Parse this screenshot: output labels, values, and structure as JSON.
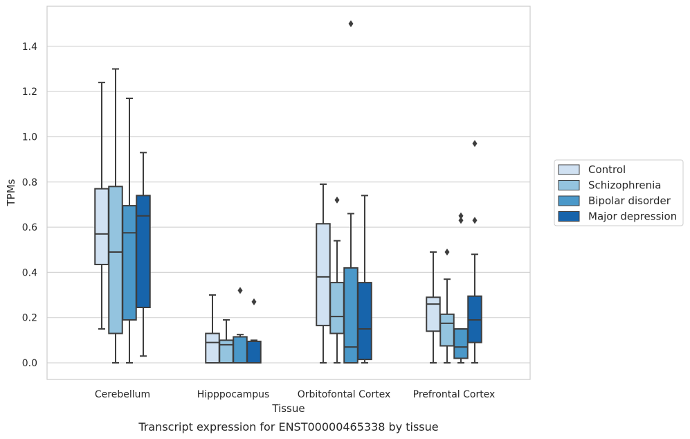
{
  "chart_data": {
    "type": "boxplot",
    "xlabel": "Tissue",
    "ylabel": "TPMs",
    "caption": "Transcript expression for ENST00000465338 by tissue",
    "ylim": [
      -0.07,
      1.56
    ],
    "yticks": [
      0.0,
      0.2,
      0.4,
      0.6,
      0.8,
      1.0,
      1.2,
      1.4
    ],
    "ytick_labels": [
      "0.0",
      "0.2",
      "0.4",
      "0.6",
      "0.8",
      "1.0",
      "1.2",
      "1.4"
    ],
    "categories": [
      "Cerebellum",
      "Hipppocampus",
      "Orbitofontal Cortex",
      "Prefrontal Cortex"
    ],
    "grid": "horizontal",
    "legend_position": "right",
    "series": [
      {
        "name": "Control",
        "color": "#d0e1f2",
        "boxes": [
          {
            "whisker_low": 0.15,
            "q1": 0.435,
            "median": 0.57,
            "q3": 0.77,
            "whisker_high": 1.24,
            "outliers": []
          },
          {
            "whisker_low": 0.0,
            "q1": 0.0,
            "median": 0.09,
            "q3": 0.13,
            "whisker_high": 0.3,
            "outliers": []
          },
          {
            "whisker_low": 0.0,
            "q1": 0.165,
            "median": 0.38,
            "q3": 0.615,
            "whisker_high": 0.79,
            "outliers": []
          },
          {
            "whisker_low": 0.0,
            "q1": 0.14,
            "median": 0.26,
            "q3": 0.29,
            "whisker_high": 0.49,
            "outliers": []
          }
        ]
      },
      {
        "name": "Schizophrenia",
        "color": "#94c4df",
        "boxes": [
          {
            "whisker_low": 0.0,
            "q1": 0.13,
            "median": 0.49,
            "q3": 0.78,
            "whisker_high": 1.3,
            "outliers": []
          },
          {
            "whisker_low": 0.0,
            "q1": 0.0,
            "median": 0.08,
            "q3": 0.1,
            "whisker_high": 0.19,
            "outliers": []
          },
          {
            "whisker_low": 0.0,
            "q1": 0.13,
            "median": 0.205,
            "q3": 0.355,
            "whisker_high": 0.54,
            "outliers": [
              0.72
            ]
          },
          {
            "whisker_low": 0.0,
            "q1": 0.075,
            "median": 0.175,
            "q3": 0.215,
            "whisker_high": 0.37,
            "outliers": [
              0.49
            ]
          }
        ]
      },
      {
        "name": "Bipolar disorder",
        "color": "#4a98c9",
        "boxes": [
          {
            "whisker_low": 0.0,
            "q1": 0.19,
            "median": 0.575,
            "q3": 0.695,
            "whisker_high": 1.17,
            "outliers": []
          },
          {
            "whisker_low": 0.0,
            "q1": 0.0,
            "median": 0.0,
            "q3": 0.115,
            "whisker_high": 0.125,
            "outliers": [
              0.32
            ]
          },
          {
            "whisker_low": 0.0,
            "q1": 0.0,
            "median": 0.07,
            "q3": 0.42,
            "whisker_high": 0.66,
            "outliers": [
              1.5
            ]
          },
          {
            "whisker_low": 0.0,
            "q1": 0.02,
            "median": 0.07,
            "q3": 0.15,
            "whisker_high": 0.15,
            "outliers": [
              0.63,
              0.65
            ]
          }
        ]
      },
      {
        "name": "Major depression",
        "color": "#1764ab",
        "boxes": [
          {
            "whisker_low": 0.03,
            "q1": 0.245,
            "median": 0.65,
            "q3": 0.74,
            "whisker_high": 0.93,
            "outliers": []
          },
          {
            "whisker_low": 0.0,
            "q1": 0.0,
            "median": 0.0,
            "q3": 0.095,
            "whisker_high": 0.1,
            "outliers": [
              0.27
            ]
          },
          {
            "whisker_low": 0.0,
            "q1": 0.015,
            "median": 0.15,
            "q3": 0.355,
            "whisker_high": 0.74,
            "outliers": []
          },
          {
            "whisker_low": 0.0,
            "q1": 0.09,
            "median": 0.19,
            "q3": 0.295,
            "whisker_high": 0.48,
            "outliers": [
              0.63,
              0.97
            ]
          }
        ]
      }
    ]
  }
}
